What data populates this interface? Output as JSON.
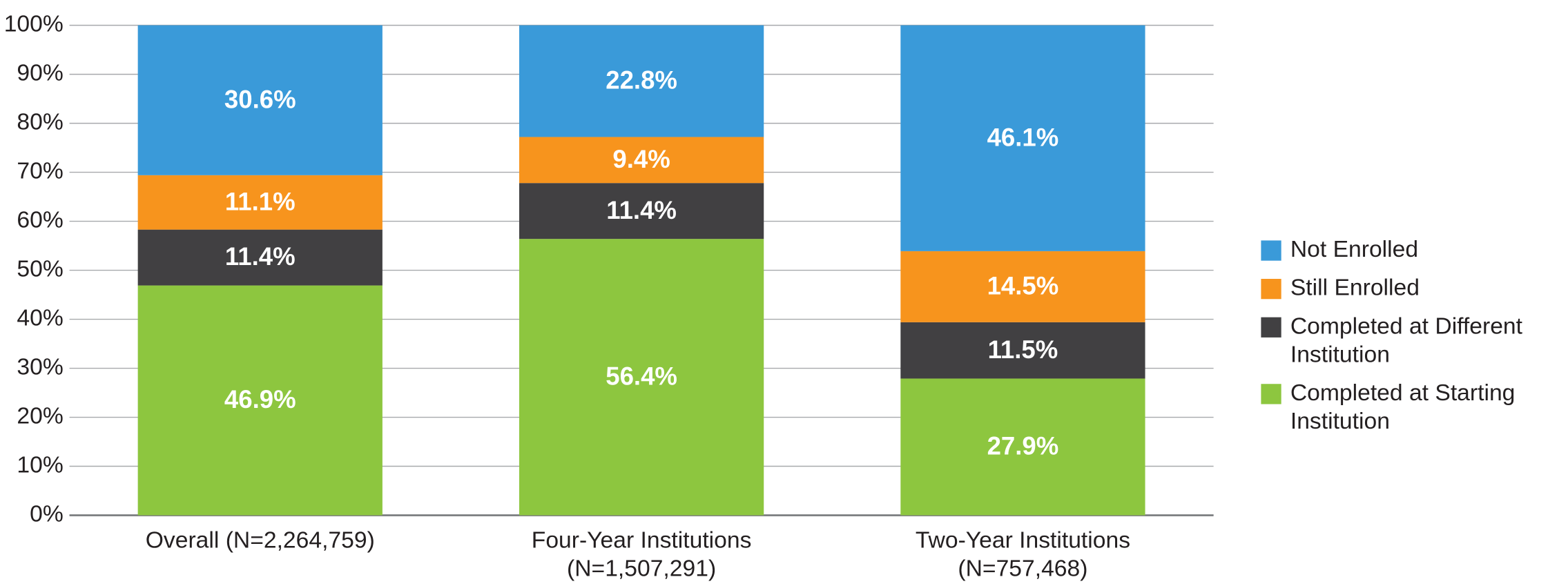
{
  "chart_data": {
    "type": "stacked_bar",
    "categories": [
      "Overall (N=2,264,759)",
      "Four-Year Institutions (N=1,507,291)",
      "Two-Year Institutions (N=757,468)"
    ],
    "series": [
      {
        "name": "Not Enrolled",
        "color": "#3a9ad9",
        "values": [
          30.6,
          22.8,
          46.1
        ],
        "value_labels": [
          "30.6%",
          "22.8%",
          "46.1%"
        ]
      },
      {
        "name": "Still Enrolled",
        "color": "#f7941d",
        "values": [
          11.1,
          9.4,
          14.5
        ],
        "value_labels": [
          "11.1%",
          "9.4%",
          "14.5%"
        ]
      },
      {
        "name": "Completed at Different Institution",
        "color": "#414042",
        "values": [
          11.4,
          11.4,
          11.5
        ],
        "value_labels": [
          "11.4%",
          "11.4%",
          "11.5%"
        ]
      },
      {
        "name": "Completed at Starting Institution",
        "color": "#8dc63f",
        "values": [
          46.9,
          56.4,
          27.9
        ],
        "value_labels": [
          "46.9%",
          "56.4%",
          "27.9%"
        ]
      }
    ],
    "ylim": [
      0,
      100
    ],
    "yticks": [
      {
        "value": 0,
        "label": "0%"
      },
      {
        "value": 10,
        "label": "10%"
      },
      {
        "value": 20,
        "label": "20%"
      },
      {
        "value": 30,
        "label": "30%"
      },
      {
        "value": 40,
        "label": "40%"
      },
      {
        "value": 50,
        "label": "50%"
      },
      {
        "value": 60,
        "label": "60%"
      },
      {
        "value": 70,
        "label": "70%"
      },
      {
        "value": 80,
        "label": "80%"
      },
      {
        "value": 90,
        "label": "90%"
      },
      {
        "value": 100,
        "label": "100%"
      }
    ],
    "grid": true,
    "legend": "right"
  }
}
